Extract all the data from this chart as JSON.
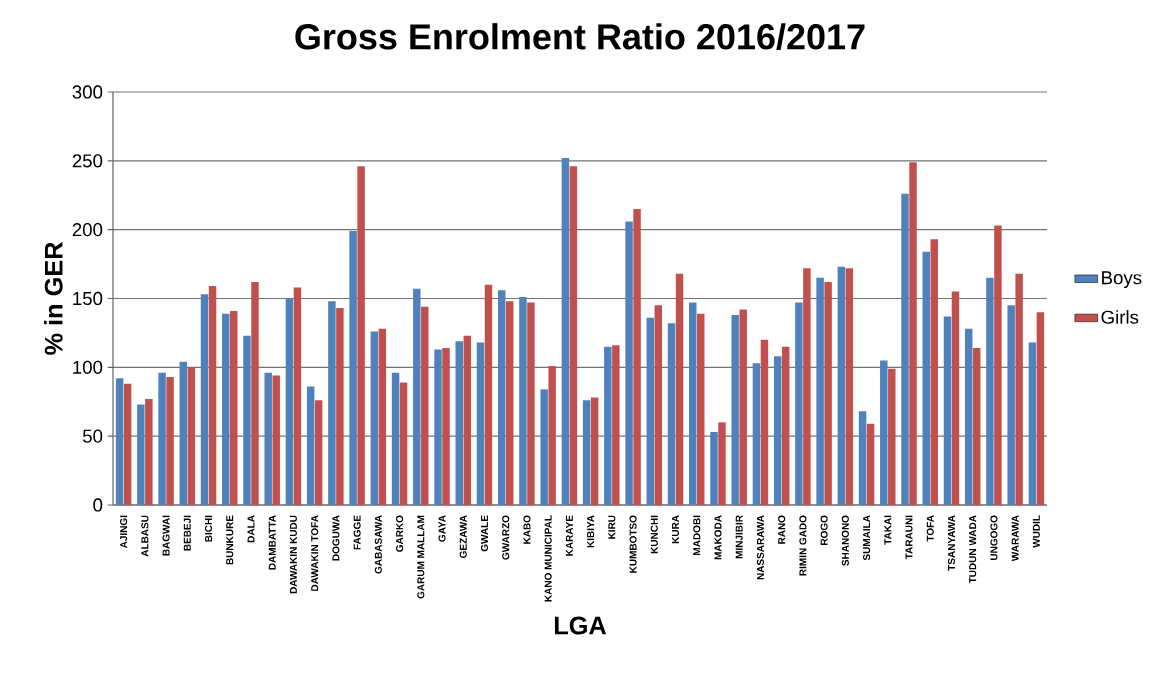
{
  "chart_data": {
    "type": "bar",
    "title": "Gross Enrolment Ratio 2016/2017",
    "xlabel": "LGA",
    "ylabel": "% in GER",
    "categories": [
      "AJINGI",
      "ALBASU",
      "BAGWAI",
      "BEBEJI",
      "BICHI",
      "BUNKURE",
      "DALA",
      "DAMBATTA",
      "DAWAKIN KUDU",
      "DAWAKIN TOFA",
      "DOGUWA",
      "FAGGE",
      "GABASAWA",
      "GARKO",
      "GARUM MALLAM",
      "GAYA",
      "GEZAWA",
      "GWALE",
      "GWARZO",
      "KABO",
      "KANO MUNICIPAL",
      "KARAYE",
      "KIBIYA",
      "KIRU",
      "KUMBOTSO",
      "KUNCHI",
      "KURA",
      "MADOBI",
      "MAKODA",
      "MINJIBIR",
      "NASSARAWA",
      "RANO",
      "RIMIN GADO",
      "ROGO",
      "SHANONO",
      "SUMAILA",
      "TAKAI",
      "TARAUNI",
      "TOFA",
      "TSANYAWA",
      "TUDUN WADA",
      "UNGOGO",
      "WARAWA",
      "WUDIL"
    ],
    "series": [
      {
        "name": "Boys",
        "color": "#4f81bd",
        "values": [
          92,
          73,
          96,
          104,
          153,
          139,
          123,
          96,
          150,
          86,
          148,
          199,
          126,
          96,
          157,
          113,
          119,
          118,
          156,
          151,
          84,
          252,
          76,
          115,
          206,
          136,
          132,
          147,
          53,
          138,
          103,
          108,
          147,
          165,
          173,
          68,
          105,
          226,
          184,
          137,
          128,
          165,
          145,
          118
        ]
      },
      {
        "name": "Girls",
        "color": "#c0504d",
        "values": [
          88,
          77,
          93,
          100,
          159,
          141,
          162,
          94,
          158,
          76,
          143,
          246,
          128,
          89,
          144,
          114,
          123,
          160,
          148,
          147,
          101,
          246,
          78,
          116,
          215,
          145,
          168,
          139,
          60,
          142,
          120,
          115,
          172,
          162,
          172,
          59,
          99,
          249,
          193,
          155,
          114,
          203,
          168,
          140
        ]
      }
    ],
    "ylim": [
      0,
      300
    ],
    "yticks": [
      0,
      50,
      100,
      150,
      200,
      250,
      300
    ],
    "grid": "y",
    "legend": "right"
  }
}
